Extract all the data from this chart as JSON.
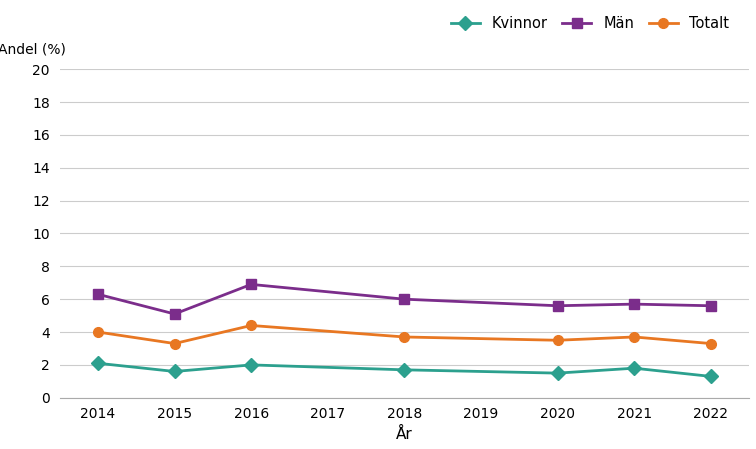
{
  "years": [
    2014,
    2015,
    2016,
    2018,
    2020,
    2021,
    2022
  ],
  "kvinnor": [
    2.1,
    1.6,
    2.0,
    1.7,
    1.5,
    1.8,
    1.3
  ],
  "man": [
    6.3,
    5.1,
    6.9,
    6.0,
    5.6,
    5.7,
    5.6
  ],
  "totalt": [
    4.0,
    3.3,
    4.4,
    3.7,
    3.5,
    3.7,
    3.3
  ],
  "kvinnor_color": "#2ca08e",
  "man_color": "#7b2d8b",
  "totalt_color": "#e87722",
  "xlabel": "År",
  "ylabel": "Andel (%)",
  "ylim": [
    0,
    20
  ],
  "yticks": [
    0,
    2,
    4,
    6,
    8,
    10,
    12,
    14,
    16,
    18,
    20
  ],
  "xticks": [
    2014,
    2015,
    2016,
    2017,
    2018,
    2019,
    2020,
    2021,
    2022
  ],
  "legend_kvinnor": "Kvinnor",
  "legend_man": "Män",
  "legend_totalt": "Totalt",
  "background_color": "#ffffff",
  "grid_color": "#cccccc",
  "linewidth": 2.0,
  "markersize": 7
}
